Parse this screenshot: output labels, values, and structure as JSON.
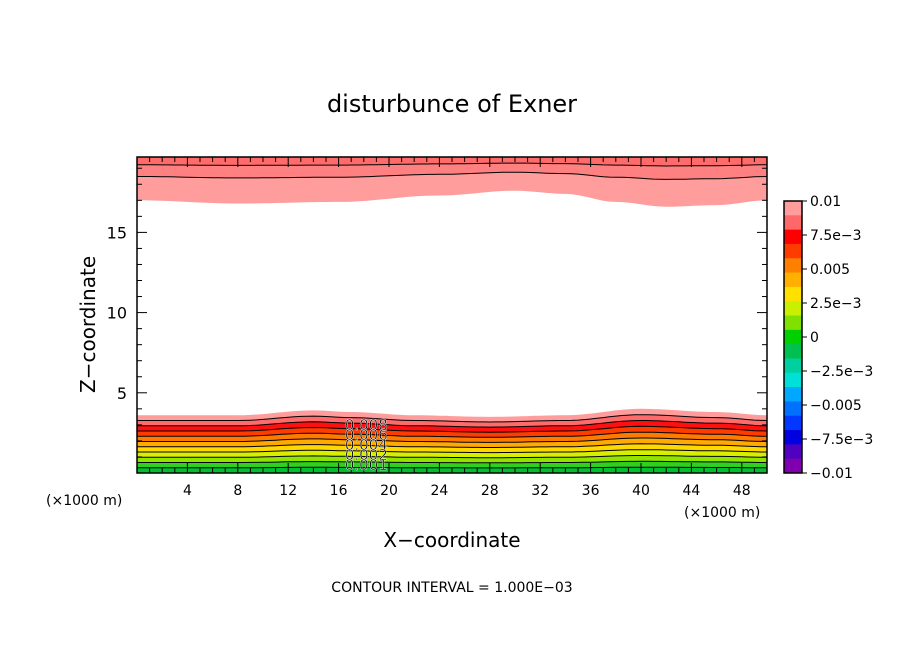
{
  "chart_data": {
    "type": "heatmap",
    "subtype": "filled-contour",
    "title": "disturbunce of Exner",
    "xlabel": "X−coordinate",
    "ylabel": "Z−coordinate",
    "x_unit": "(×1000 m)",
    "x_unit_right": "(×1000 m)",
    "footer": "CONTOUR INTERVAL = 1.000E−03",
    "xlim": [
      0,
      50
    ],
    "ylim": [
      0,
      19.7
    ],
    "x_ticks": [
      "4",
      "8",
      "12",
      "16",
      "20",
      "24",
      "28",
      "32",
      "36",
      "40",
      "44",
      "48"
    ],
    "y_ticks": [
      "5",
      "10",
      "15"
    ],
    "contour_labels": [
      "0.008",
      "0.006",
      "0.004",
      "0.002",
      "0.001"
    ],
    "contour_interval": 0.001,
    "colorbar": {
      "labels": [
        "0.01",
        "7.5e−3",
        "0.005",
        "2.5e−3",
        "0",
        "−2.5e−3",
        "−0.005",
        "−7.5e−3",
        "−0.01"
      ],
      "colors_top_to_bottom": [
        "#ff9c9c",
        "#ff6868",
        "#ff0000",
        "#ff3c00",
        "#ff8000",
        "#ffb000",
        "#ffe000",
        "#c8f000",
        "#80e000",
        "#00d000",
        "#00c050",
        "#00d0a0",
        "#00e0d8",
        "#00a8ff",
        "#0070ff",
        "#0038ff",
        "#0000e0",
        "#5000c0",
        "#8000b0"
      ]
    },
    "top_band_boundary": [
      [
        0,
        17.0
      ],
      [
        8,
        16.8
      ],
      [
        16,
        16.9
      ],
      [
        24,
        17.3
      ],
      [
        30,
        17.6
      ],
      [
        34,
        17.4
      ],
      [
        38,
        16.9
      ],
      [
        42,
        16.6
      ],
      [
        46,
        16.7
      ],
      [
        50,
        17.0
      ]
    ],
    "bottom_band_boundary": [
      [
        0,
        3.6
      ],
      [
        8,
        3.6
      ],
      [
        14,
        3.9
      ],
      [
        17,
        3.8
      ],
      [
        22,
        3.6
      ],
      [
        28,
        3.5
      ],
      [
        34,
        3.6
      ],
      [
        40,
        4.0
      ],
      [
        46,
        3.8
      ],
      [
        50,
        3.6
      ]
    ],
    "bottom_band_levels": [
      0.009,
      0.008,
      0.007,
      0.006,
      0.005,
      0.004,
      0.003,
      0.002,
      0.001
    ]
  }
}
